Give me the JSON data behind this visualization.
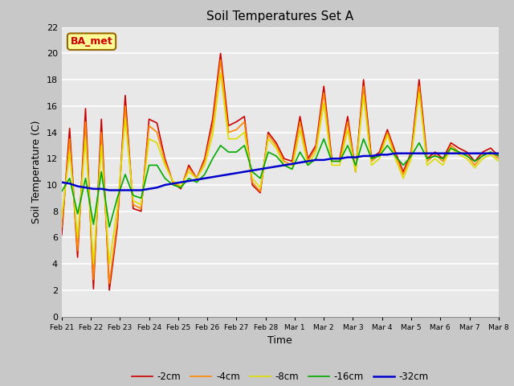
{
  "title": "Soil Temperatures Set A",
  "xlabel": "Time",
  "ylabel": "Soil Temperature (C)",
  "ylim": [
    0,
    22
  ],
  "yticks": [
    0,
    2,
    4,
    6,
    8,
    10,
    12,
    14,
    16,
    18,
    20,
    22
  ],
  "bg_color": "#c8c8c8",
  "plot_bg_color": "#e8e8e8",
  "annotation_text": "BA_met",
  "annotation_bg": "#ffff99",
  "annotation_border": "#996600",
  "legend_entries": [
    "-2cm",
    "-4cm",
    "-8cm",
    "-16cm",
    "-32cm"
  ],
  "line_colors": [
    "#cc0000",
    "#ff8800",
    "#dddd00",
    "#00aa00",
    "#0000cc"
  ],
  "line_widths": [
    1.2,
    1.2,
    1.2,
    1.2,
    1.8
  ],
  "tick_labels": [
    "Feb 21",
    "Feb 22",
    "Feb 23",
    "Feb 24",
    "Feb 25",
    "Feb 26",
    "Feb 27",
    "Feb 28",
    "Mar 1",
    "Mar 2",
    "Mar 3",
    "Mar 4",
    "Mar 5",
    "Mar 6",
    "Mar 7",
    "Mar 8"
  ],
  "depth_2cm": [
    6.2,
    14.3,
    4.5,
    15.8,
    2.1,
    15.0,
    2.0,
    6.8,
    16.8,
    8.2,
    8.0,
    15.0,
    14.7,
    12.0,
    10.2,
    9.7,
    11.5,
    10.5,
    12.0,
    15.0,
    20.0,
    14.5,
    14.8,
    15.2,
    10.0,
    9.4,
    14.0,
    13.2,
    12.0,
    11.8,
    15.2,
    12.0,
    13.0,
    17.5,
    12.0,
    12.0,
    15.2,
    11.0,
    18.0,
    12.0,
    12.5,
    14.2,
    12.5,
    11.0,
    12.5,
    18.0,
    12.0,
    12.5,
    12.0,
    13.2,
    12.8,
    12.5,
    11.8,
    12.5,
    12.8,
    12.2
  ],
  "depth_4cm": [
    6.8,
    13.5,
    5.0,
    14.8,
    2.8,
    14.0,
    2.5,
    7.2,
    16.0,
    8.5,
    8.2,
    14.5,
    14.0,
    11.8,
    10.2,
    9.8,
    11.3,
    10.5,
    11.8,
    14.5,
    19.5,
    14.0,
    14.2,
    14.8,
    10.2,
    9.5,
    13.8,
    13.0,
    11.8,
    11.5,
    14.8,
    11.8,
    12.8,
    17.0,
    11.8,
    11.8,
    14.8,
    11.0,
    17.5,
    11.8,
    12.3,
    14.0,
    12.3,
    10.8,
    12.3,
    17.5,
    11.8,
    12.3,
    11.8,
    13.0,
    12.5,
    12.3,
    11.5,
    12.3,
    12.5,
    12.0
  ],
  "depth_8cm": [
    7.5,
    12.5,
    6.0,
    13.5,
    4.0,
    13.0,
    4.0,
    8.2,
    15.0,
    8.8,
    8.5,
    13.5,
    13.2,
    11.5,
    10.3,
    9.9,
    11.0,
    10.5,
    11.5,
    13.8,
    18.5,
    13.5,
    13.5,
    14.0,
    10.5,
    9.8,
    13.5,
    12.8,
    11.5,
    11.2,
    14.2,
    11.5,
    12.5,
    16.2,
    11.5,
    11.5,
    14.2,
    11.0,
    16.8,
    11.5,
    12.0,
    13.8,
    12.0,
    10.5,
    12.0,
    17.0,
    11.5,
    12.0,
    11.5,
    12.8,
    12.3,
    12.0,
    11.3,
    12.0,
    12.3,
    11.8
  ],
  "depth_16cm": [
    9.5,
    10.5,
    7.8,
    10.5,
    7.0,
    11.0,
    6.8,
    9.0,
    10.8,
    9.2,
    9.0,
    11.5,
    11.5,
    10.5,
    10.0,
    9.8,
    10.5,
    10.2,
    10.8,
    12.0,
    13.0,
    12.5,
    12.5,
    13.0,
    11.0,
    10.5,
    12.5,
    12.2,
    11.5,
    11.2,
    12.5,
    11.5,
    12.0,
    13.5,
    11.8,
    11.8,
    13.0,
    11.5,
    13.5,
    12.0,
    12.2,
    13.0,
    12.2,
    11.5,
    12.2,
    13.2,
    12.0,
    12.2,
    12.0,
    12.8,
    12.5,
    12.2,
    11.8,
    12.2,
    12.5,
    12.2
  ],
  "depth_32cm": [
    10.2,
    10.1,
    9.9,
    9.8,
    9.7,
    9.7,
    9.6,
    9.6,
    9.6,
    9.6,
    9.6,
    9.7,
    9.8,
    10.0,
    10.1,
    10.2,
    10.3,
    10.4,
    10.5,
    10.6,
    10.7,
    10.8,
    10.9,
    11.0,
    11.1,
    11.2,
    11.3,
    11.4,
    11.5,
    11.6,
    11.7,
    11.8,
    11.9,
    11.9,
    12.0,
    12.0,
    12.1,
    12.1,
    12.2,
    12.2,
    12.3,
    12.3,
    12.4,
    12.4,
    12.4,
    12.4,
    12.4,
    12.4,
    12.4,
    12.4,
    12.4,
    12.4,
    12.4,
    12.4,
    12.4,
    12.4
  ]
}
